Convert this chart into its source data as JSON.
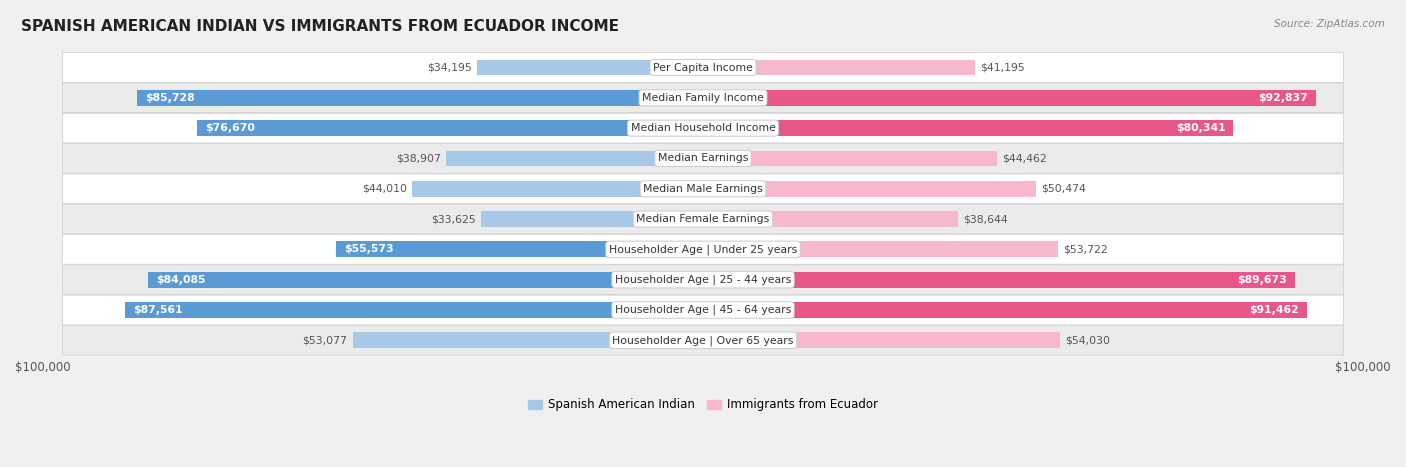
{
  "title": "SPANISH AMERICAN INDIAN VS IMMIGRANTS FROM ECUADOR INCOME",
  "source": "Source: ZipAtlas.com",
  "categories": [
    "Per Capita Income",
    "Median Family Income",
    "Median Household Income",
    "Median Earnings",
    "Median Male Earnings",
    "Median Female Earnings",
    "Householder Age | Under 25 years",
    "Householder Age | 25 - 44 years",
    "Householder Age | 45 - 64 years",
    "Householder Age | Over 65 years"
  ],
  "left_values": [
    34195,
    85728,
    76670,
    38907,
    44010,
    33625,
    55573,
    84085,
    87561,
    53077
  ],
  "right_values": [
    41195,
    92837,
    80341,
    44462,
    50474,
    38644,
    53722,
    89673,
    91462,
    54030
  ],
  "left_labels": [
    "$34,195",
    "$85,728",
    "$76,670",
    "$38,907",
    "$44,010",
    "$33,625",
    "$55,573",
    "$84,085",
    "$87,561",
    "$53,077"
  ],
  "right_labels": [
    "$41,195",
    "$92,837",
    "$80,341",
    "$44,462",
    "$50,474",
    "$38,644",
    "$53,722",
    "$89,673",
    "$91,462",
    "$54,030"
  ],
  "max_value": 100000,
  "left_color_light": "#a8c8e8",
  "left_color_dark": "#5b9bd5",
  "right_color_light": "#f5b8cc",
  "right_color_dark": "#e8578a",
  "legend_left": "Spanish American Indian",
  "legend_right": "Immigrants from Ecuador",
  "background_color": "#f0f0f0",
  "row_bg_even": "#ffffff",
  "row_bg_odd": "#ebebeb",
  "label_fontsize": 8.5,
  "title_fontsize": 11,
  "axis_label": "$100,000",
  "threshold_large": 0.55
}
